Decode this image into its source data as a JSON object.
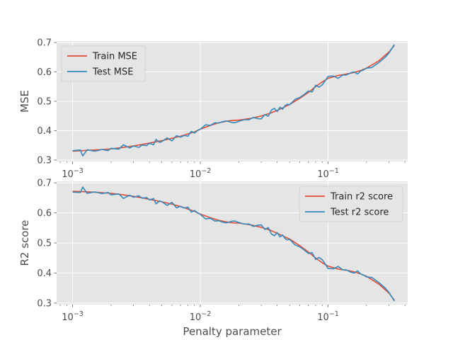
{
  "chart_data": [
    {
      "type": "line",
      "title": "",
      "xlabel": "",
      "ylabel": "MSE",
      "xscale": "log",
      "xlim": [
        0.00075,
        0.42
      ],
      "ylim": [
        0.295,
        0.705
      ],
      "x_ticks": [
        {
          "value": 0.001,
          "base": "10",
          "exp": "−3"
        },
        {
          "value": 0.01,
          "base": "10",
          "exp": "−2"
        },
        {
          "value": 0.1,
          "base": "10",
          "exp": "−1"
        }
      ],
      "y_ticks": [
        {
          "value": 0.3,
          "label": "0.3"
        },
        {
          "value": 0.4,
          "label": "0.4"
        },
        {
          "value": 0.5,
          "label": "0.5"
        },
        {
          "value": 0.6,
          "label": "0.6"
        },
        {
          "value": 0.7,
          "label": "0.7"
        }
      ],
      "grid": true,
      "legend_position": "top-left",
      "series": [
        {
          "name": "Train MSE",
          "color": "#E24A33",
          "x": [
            0.001,
            0.0013,
            0.0016,
            0.002,
            0.0025,
            0.003,
            0.0035,
            0.004,
            0.005,
            0.006,
            0.007,
            0.008,
            0.009,
            0.01,
            0.012,
            0.014,
            0.016,
            0.018,
            0.02,
            0.025,
            0.03,
            0.035,
            0.04,
            0.05,
            0.06,
            0.07,
            0.08,
            0.09,
            0.1,
            0.12,
            0.14,
            0.16,
            0.18,
            0.2,
            0.25,
            0.3,
            0.33
          ],
          "y": [
            0.33,
            0.333,
            0.335,
            0.338,
            0.343,
            0.348,
            0.353,
            0.358,
            0.366,
            0.374,
            0.381,
            0.389,
            0.396,
            0.405,
            0.418,
            0.427,
            0.432,
            0.435,
            0.436,
            0.442,
            0.45,
            0.459,
            0.469,
            0.489,
            0.51,
            0.53,
            0.55,
            0.566,
            0.578,
            0.588,
            0.593,
            0.598,
            0.605,
            0.613,
            0.638,
            0.668,
            0.69
          ]
        },
        {
          "name": "Test MSE",
          "color": "#348ABD",
          "x": [
            0.001,
            0.00115,
            0.0012,
            0.0013,
            0.0015,
            0.0017,
            0.0019,
            0.002,
            0.0023,
            0.0025,
            0.0028,
            0.003,
            0.0033,
            0.0035,
            0.0038,
            0.004,
            0.0043,
            0.0045,
            0.0048,
            0.005,
            0.0055,
            0.006,
            0.0065,
            0.007,
            0.0075,
            0.008,
            0.0085,
            0.009,
            0.0095,
            0.01,
            0.011,
            0.012,
            0.013,
            0.014,
            0.015,
            0.016,
            0.017,
            0.018,
            0.019,
            0.02,
            0.022,
            0.024,
            0.026,
            0.028,
            0.03,
            0.032,
            0.034,
            0.036,
            0.038,
            0.04,
            0.042,
            0.044,
            0.046,
            0.048,
            0.05,
            0.055,
            0.06,
            0.065,
            0.07,
            0.075,
            0.08,
            0.085,
            0.09,
            0.095,
            0.1,
            0.11,
            0.12,
            0.13,
            0.14,
            0.15,
            0.16,
            0.17,
            0.18,
            0.19,
            0.2,
            0.22,
            0.25,
            0.28,
            0.3,
            0.33
          ],
          "y": [
            0.332,
            0.334,
            0.314,
            0.335,
            0.33,
            0.336,
            0.332,
            0.34,
            0.337,
            0.352,
            0.341,
            0.348,
            0.343,
            0.351,
            0.349,
            0.357,
            0.352,
            0.37,
            0.36,
            0.363,
            0.375,
            0.365,
            0.383,
            0.378,
            0.384,
            0.381,
            0.398,
            0.392,
            0.4,
            0.405,
            0.42,
            0.418,
            0.427,
            0.426,
            0.431,
            0.433,
            0.43,
            0.427,
            0.428,
            0.432,
            0.437,
            0.437,
            0.445,
            0.441,
            0.44,
            0.455,
            0.449,
            0.47,
            0.476,
            0.465,
            0.48,
            0.473,
            0.485,
            0.49,
            0.488,
            0.506,
            0.513,
            0.523,
            0.535,
            0.532,
            0.555,
            0.548,
            0.556,
            0.57,
            0.585,
            0.586,
            0.578,
            0.589,
            0.59,
            0.597,
            0.6,
            0.593,
            0.603,
            0.607,
            0.613,
            0.615,
            0.632,
            0.65,
            0.665,
            0.693
          ]
        }
      ]
    },
    {
      "type": "line",
      "title": "",
      "xlabel": "Penalty parameter",
      "ylabel": "R2 score",
      "xscale": "log",
      "xlim": [
        0.00075,
        0.42
      ],
      "ylim": [
        0.295,
        0.705
      ],
      "x_ticks": [
        {
          "value": 0.001,
          "base": "10",
          "exp": "−3"
        },
        {
          "value": 0.01,
          "base": "10",
          "exp": "−2"
        },
        {
          "value": 0.1,
          "base": "10",
          "exp": "−1"
        }
      ],
      "y_ticks": [
        {
          "value": 0.3,
          "label": "0.3"
        },
        {
          "value": 0.4,
          "label": "0.4"
        },
        {
          "value": 0.5,
          "label": "0.5"
        },
        {
          "value": 0.6,
          "label": "0.6"
        },
        {
          "value": 0.7,
          "label": "0.7"
        }
      ],
      "grid": true,
      "legend_position": "top-right",
      "series": [
        {
          "name": "Train r2 score",
          "color": "#E24A33",
          "x": [
            0.001,
            0.0013,
            0.0016,
            0.002,
            0.0025,
            0.003,
            0.0035,
            0.004,
            0.005,
            0.006,
            0.007,
            0.008,
            0.009,
            0.01,
            0.012,
            0.014,
            0.016,
            0.018,
            0.02,
            0.025,
            0.03,
            0.035,
            0.04,
            0.05,
            0.06,
            0.07,
            0.08,
            0.09,
            0.1,
            0.12,
            0.14,
            0.16,
            0.18,
            0.2,
            0.25,
            0.3,
            0.33
          ],
          "y": [
            0.672,
            0.67,
            0.668,
            0.665,
            0.66,
            0.655,
            0.65,
            0.645,
            0.637,
            0.629,
            0.621,
            0.613,
            0.605,
            0.596,
            0.584,
            0.575,
            0.57,
            0.567,
            0.566,
            0.56,
            0.552,
            0.543,
            0.532,
            0.513,
            0.491,
            0.47,
            0.45,
            0.434,
            0.423,
            0.413,
            0.409,
            0.404,
            0.397,
            0.389,
            0.363,
            0.333,
            0.31
          ]
        },
        {
          "name": "Test r2 score",
          "color": "#348ABD",
          "x": [
            0.001,
            0.00115,
            0.0012,
            0.0013,
            0.0015,
            0.0017,
            0.0019,
            0.002,
            0.0023,
            0.0025,
            0.0028,
            0.003,
            0.0033,
            0.0035,
            0.0038,
            0.004,
            0.0043,
            0.0045,
            0.0048,
            0.005,
            0.0055,
            0.006,
            0.0065,
            0.007,
            0.0075,
            0.008,
            0.0085,
            0.009,
            0.0095,
            0.01,
            0.011,
            0.012,
            0.013,
            0.014,
            0.015,
            0.016,
            0.017,
            0.018,
            0.019,
            0.02,
            0.022,
            0.024,
            0.026,
            0.028,
            0.03,
            0.032,
            0.034,
            0.036,
            0.038,
            0.04,
            0.042,
            0.044,
            0.046,
            0.048,
            0.05,
            0.055,
            0.06,
            0.065,
            0.07,
            0.075,
            0.08,
            0.085,
            0.09,
            0.095,
            0.1,
            0.11,
            0.12,
            0.13,
            0.14,
            0.15,
            0.16,
            0.17,
            0.18,
            0.19,
            0.2,
            0.22,
            0.25,
            0.28,
            0.3,
            0.33
          ],
          "y": [
            0.669,
            0.668,
            0.686,
            0.665,
            0.67,
            0.664,
            0.668,
            0.66,
            0.663,
            0.648,
            0.659,
            0.652,
            0.657,
            0.649,
            0.651,
            0.643,
            0.648,
            0.63,
            0.64,
            0.637,
            0.625,
            0.635,
            0.617,
            0.622,
            0.616,
            0.619,
            0.602,
            0.608,
            0.6,
            0.595,
            0.58,
            0.582,
            0.573,
            0.574,
            0.569,
            0.567,
            0.57,
            0.573,
            0.572,
            0.568,
            0.563,
            0.563,
            0.555,
            0.559,
            0.56,
            0.545,
            0.551,
            0.53,
            0.524,
            0.535,
            0.52,
            0.527,
            0.515,
            0.51,
            0.512,
            0.494,
            0.487,
            0.477,
            0.465,
            0.468,
            0.445,
            0.452,
            0.444,
            0.43,
            0.415,
            0.414,
            0.422,
            0.411,
            0.41,
            0.403,
            0.4,
            0.407,
            0.397,
            0.393,
            0.387,
            0.385,
            0.368,
            0.35,
            0.335,
            0.307
          ]
        }
      ]
    }
  ]
}
